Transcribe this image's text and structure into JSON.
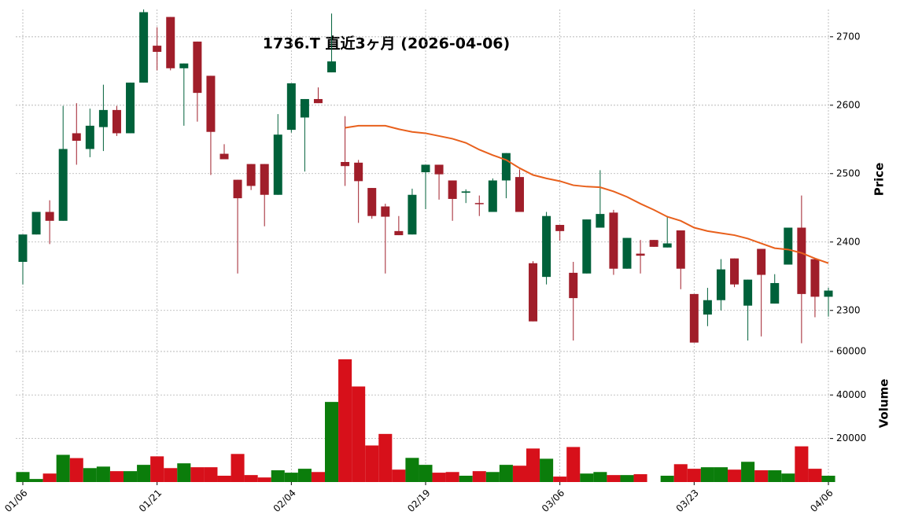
{
  "chart_data": {
    "type": "candlestick",
    "title": "1736.T 直近3ヶ月 (2026-04-06)",
    "categories": [
      "01/06",
      null,
      null,
      null,
      null,
      null,
      null,
      null,
      null,
      null,
      "01/21",
      null,
      null,
      null,
      null,
      null,
      null,
      null,
      null,
      null,
      "02/04",
      null,
      null,
      null,
      null,
      null,
      null,
      null,
      null,
      null,
      "02/19",
      null,
      null,
      null,
      null,
      null,
      null,
      null,
      null,
      null,
      "03/06",
      null,
      null,
      null,
      null,
      null,
      null,
      null,
      null,
      null,
      "03/23",
      null,
      null,
      null,
      null,
      null,
      null,
      null,
      null,
      null,
      "04/06"
    ],
    "open": [
      2371,
      2411,
      2444,
      2431,
      2559,
      2536,
      2568,
      2593,
      2559,
      2633,
      2687,
      2729,
      2654,
      2693,
      2643,
      2529,
      2491,
      2514,
      2514,
      2469,
      2564,
      2582,
      2609,
      2648,
      2517,
      2516,
      2479,
      2452,
      2416,
      2411,
      2502,
      2513,
      2490,
      2472,
      2457,
      2444,
      2490,
      2495,
      2369,
      2349,
      2425,
      2355,
      2354,
      2421,
      2443,
      2361,
      2383,
      2403,
      2392,
      2417,
      2324,
      2294,
      2315,
      2376,
      2307,
      2390,
      2310,
      2367,
      2421,
      2375,
      2320
    ],
    "high": [
      2411,
      2444,
      2461,
      2599,
      2603,
      2595,
      2630,
      2599,
      2633,
      2740,
      2714,
      2729,
      2661,
      2693,
      2643,
      2543,
      2491,
      2514,
      2514,
      2587,
      2632,
      2609,
      2626,
      2734,
      2584,
      2520,
      2479,
      2456,
      2438,
      2478,
      2513,
      2513,
      2490,
      2477,
      2468,
      2493,
      2530,
      2506,
      2372,
      2444,
      2425,
      2371,
      2433,
      2505,
      2447,
      2406,
      2403,
      2403,
      2438,
      2417,
      2324,
      2333,
      2375,
      2376,
      2345,
      2390,
      2353,
      2421,
      2468,
      2375,
      2333
    ],
    "low": [
      2338,
      2411,
      2397,
      2431,
      2513,
      2524,
      2533,
      2555,
      2559,
      2633,
      2651,
      2651,
      2570,
      2576,
      2498,
      2521,
      2354,
      2476,
      2423,
      2469,
      2560,
      2503,
      2603,
      2648,
      2482,
      2428,
      2434,
      2354,
      2410,
      2411,
      2448,
      2462,
      2431,
      2457,
      2438,
      2444,
      2464,
      2444,
      2284,
      2338,
      2402,
      2256,
      2354,
      2421,
      2352,
      2361,
      2354,
      2393,
      2392,
      2331,
      2253,
      2277,
      2300,
      2334,
      2256,
      2262,
      2310,
      2367,
      2252,
      2290,
      2291
    ],
    "close": [
      2411,
      2444,
      2431,
      2536,
      2548,
      2570,
      2593,
      2559,
      2633,
      2736,
      2678,
      2654,
      2661,
      2618,
      2561,
      2521,
      2464,
      2482,
      2469,
      2557,
      2632,
      2609,
      2603,
      2664,
      2511,
      2489,
      2438,
      2437,
      2410,
      2469,
      2513,
      2499,
      2463,
      2474,
      2456,
      2490,
      2530,
      2444,
      2284,
      2438,
      2416,
      2318,
      2433,
      2441,
      2361,
      2406,
      2380,
      2393,
      2398,
      2361,
      2253,
      2315,
      2360,
      2338,
      2345,
      2352,
      2340,
      2421,
      2324,
      2320,
      2329
    ],
    "up_color": "#00613a",
    "down_color": "#a01e2a",
    "ma": {
      "color": "#e8601c",
      "values": [
        null,
        null,
        null,
        null,
        null,
        null,
        null,
        null,
        null,
        null,
        null,
        null,
        null,
        null,
        null,
        null,
        null,
        null,
        null,
        null,
        null,
        null,
        null,
        null,
        2567,
        2570,
        2570,
        2570,
        2565,
        2561,
        2559,
        2555,
        2551,
        2545,
        2535,
        2527,
        2520,
        2508,
        2498,
        2493,
        2489,
        2483,
        2481,
        2480,
        2474,
        2466,
        2456,
        2447,
        2437,
        2431,
        2421,
        2416,
        2413,
        2410,
        2405,
        2398,
        2391,
        2389,
        2384,
        2376,
        2369
      ]
    },
    "ylabel": "Price",
    "ylim": [
      2248,
      2740
    ],
    "yticks": [
      2300,
      2400,
      2500,
      2600,
      2700
    ],
    "grid": true,
    "volume": {
      "ylabel": "Volume",
      "up_color": "#0b7d0b",
      "down_color": "#d7101a",
      "values": [
        4600,
        1400,
        3900,
        12500,
        11000,
        6400,
        7100,
        5000,
        5000,
        7900,
        11800,
        6400,
        8600,
        6800,
        6800,
        2900,
        12900,
        3200,
        2100,
        5400,
        4300,
        6100,
        4600,
        36800,
        56400,
        43900,
        16800,
        22100,
        5700,
        11100,
        7900,
        4300,
        4600,
        2900,
        5000,
        4600,
        7900,
        7500,
        15400,
        10700,
        2500,
        16100,
        3900,
        4600,
        3200,
        3200,
        3600,
        null,
        2900,
        8200,
        6100,
        6800,
        6800,
        5700,
        9300,
        5400,
        5400,
        3900,
        16400,
        6100,
        2900
      ],
      "ylim": [
        0,
        62500
      ],
      "yticks": [
        20000,
        40000,
        60000
      ]
    }
  }
}
